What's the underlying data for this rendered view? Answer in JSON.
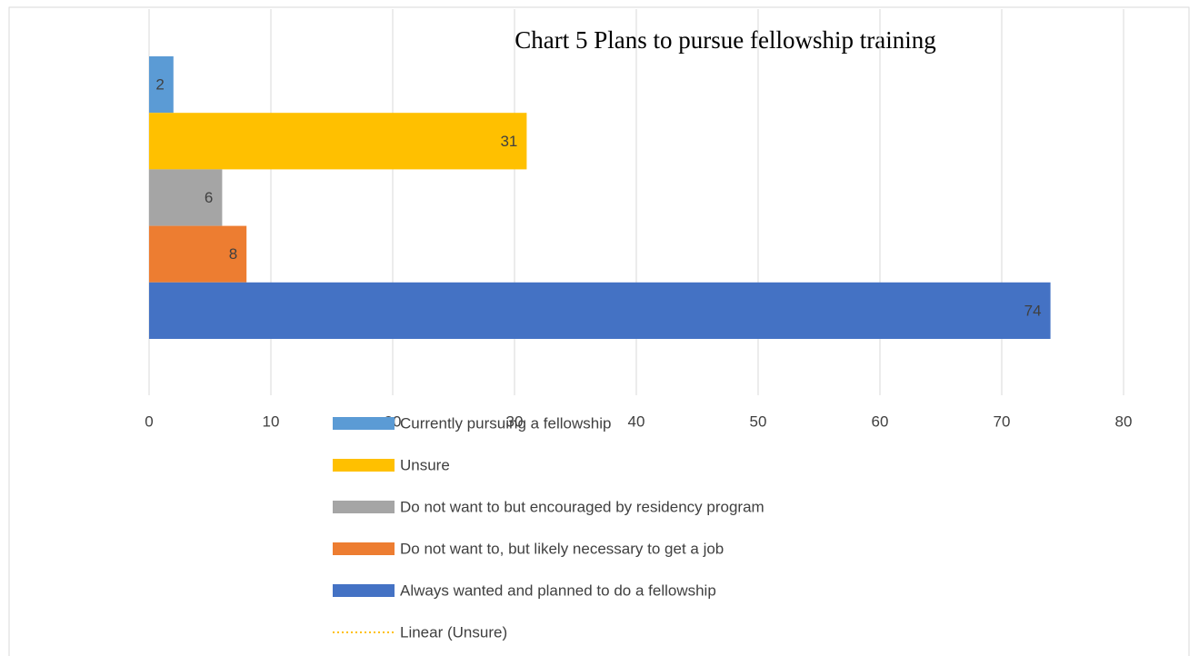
{
  "chart_data": {
    "type": "bar",
    "orientation": "horizontal",
    "title": "Chart 5 Plans to pursue fellowship training",
    "series": [
      {
        "name": "Currently pursuing a fellowship",
        "color": "#5b9bd5",
        "values": [
          2
        ]
      },
      {
        "name": "Unsure",
        "color": "#ffc000",
        "values": [
          31
        ]
      },
      {
        "name": "Do not want to but encouraged by residency program",
        "color": "#a5a5a5",
        "values": [
          6
        ]
      },
      {
        "name": "Do not want to, but likely necessary to get a job",
        "color": "#ed7d31",
        "values": [
          8
        ]
      },
      {
        "name": "Always wanted and planned to do a fellowship",
        "color": "#4472c4",
        "values": [
          74
        ]
      }
    ],
    "trendline": {
      "name": "Linear (Unsure)",
      "color": "#ffc000",
      "style": "dotted"
    },
    "xlim": [
      0,
      80
    ],
    "xticks": [
      0,
      10,
      20,
      30,
      40,
      50,
      60,
      70,
      80
    ],
    "grid": true,
    "legend": "bottom"
  }
}
